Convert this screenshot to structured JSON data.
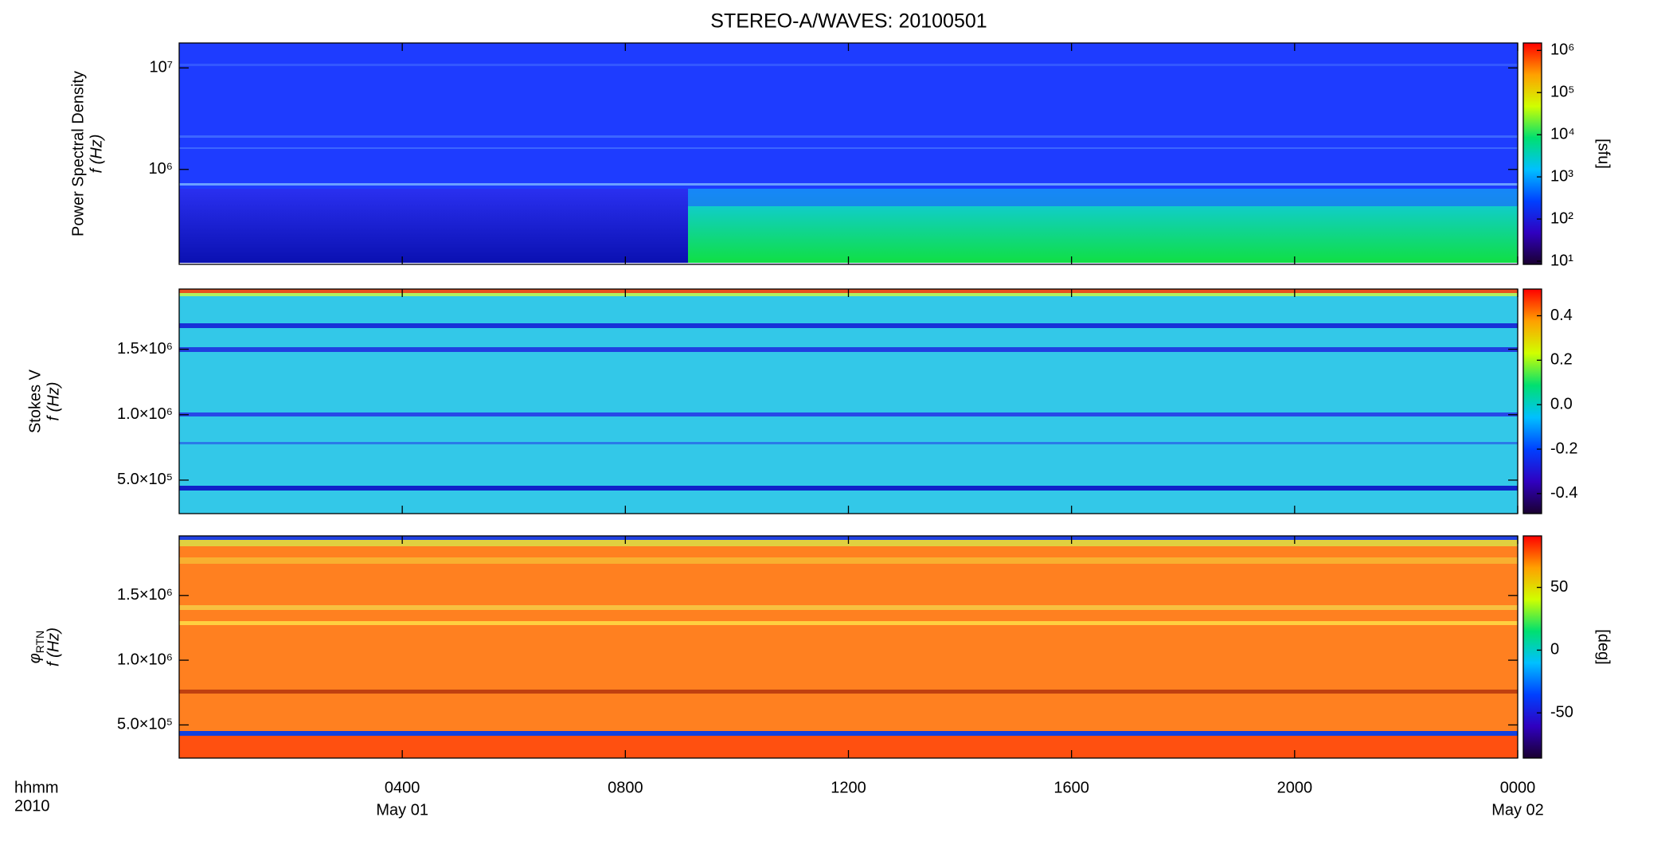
{
  "title": "STEREO-A/WAVES: 20100501",
  "chart_data": [
    {
      "type": "heatmap",
      "ylabel": "Power Spectral Density",
      "ylabel2": "f (Hz)",
      "ylog": true,
      "ylim": [
        116000,
        17600000
      ],
      "yticks": [
        {
          "value": 1000000,
          "label": "10⁶"
        },
        {
          "value": 10000000,
          "label": "10⁷"
        }
      ],
      "clog": true,
      "clim": [
        8.4,
        1500000
      ],
      "cticks": [
        {
          "value": 10,
          "label": "10¹"
        },
        {
          "value": 100,
          "label": "10²"
        },
        {
          "value": 1000,
          "label": "10³"
        },
        {
          "value": 10000,
          "label": "10⁴"
        },
        {
          "value": 100000,
          "label": "10⁵"
        },
        {
          "value": 1000000,
          "label": "10⁶"
        }
      ],
      "colorbar_label": "[sfu]",
      "colormap": [
        "#1a0030",
        "#3000c0",
        "#0040ff",
        "#00c0ff",
        "#00e070",
        "#d0ff00",
        "#ffa000",
        "#ff0000"
      ]
    },
    {
      "type": "heatmap",
      "ylabel": "Stokes V",
      "ylabel2": "f (Hz)",
      "ylog": false,
      "ylim": [
        244000,
        1960000
      ],
      "yticks": [
        {
          "value": 500000,
          "label": "5.0×10⁵"
        },
        {
          "value": 1000000,
          "label": "1.0×10⁶"
        },
        {
          "value": 1500000,
          "label": "1.5×10⁶"
        }
      ],
      "clog": false,
      "clim": [
        -0.49,
        0.52
      ],
      "cticks": [
        -0.4,
        -0.2,
        {
          "value": 0,
          "label": "0.0"
        },
        0.2,
        0.4
      ],
      "colormap": [
        "#1a0030",
        "#3000c0",
        "#0040ff",
        "#00c0ff",
        "#00e070",
        "#d0ff00",
        "#ffa000",
        "#ff0000"
      ]
    },
    {
      "type": "heatmap",
      "ylabel_symbol": "φ",
      "ylabel_subscript": "RTN",
      "ylabel2": "f (Hz)",
      "ylog": false,
      "ylim": [
        244000,
        1960000
      ],
      "yticks": [
        {
          "value": 500000,
          "label": "5.0×10⁵"
        },
        {
          "value": 1000000,
          "label": "1.0×10⁶"
        },
        {
          "value": 1500000,
          "label": "1.5×10⁶"
        }
      ],
      "clog": false,
      "clim": [
        -86,
        91
      ],
      "cticks": [
        -50,
        0,
        50
      ],
      "colorbar_label": "[deg]",
      "colormap": [
        "#1a0030",
        "#3000c0",
        "#0040ff",
        "#00c0ff",
        "#00e070",
        "#d0ff00",
        "#ffa000",
        "#ff0000"
      ],
      "xlim": [
        0,
        24
      ],
      "xticks": [
        {
          "value": 4,
          "label": "0400"
        },
        {
          "value": 8,
          "label": "0800"
        },
        {
          "value": 12,
          "label": "1200"
        },
        {
          "value": 16,
          "label": "1600"
        },
        {
          "value": 20,
          "label": "2000"
        },
        {
          "value": 24,
          "label": "0000"
        }
      ],
      "date_labels": [
        {
          "value": 4,
          "label": "May 01"
        },
        {
          "value": 24,
          "label": "May 02"
        }
      ],
      "xlabel": "hhmm",
      "xlabel2": "2010"
    }
  ]
}
